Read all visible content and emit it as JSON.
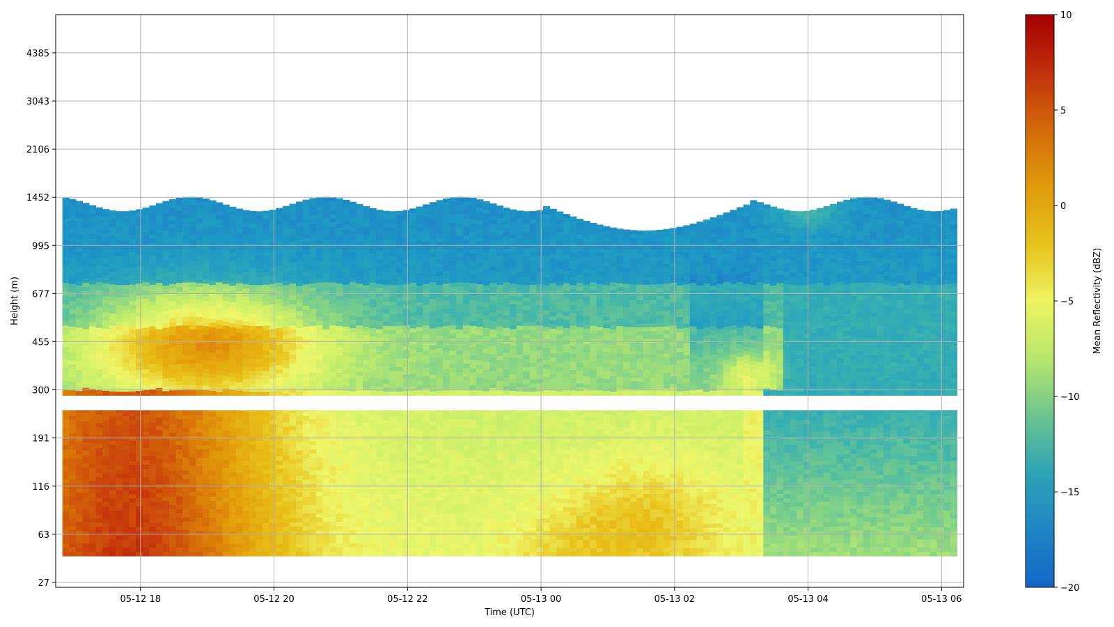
{
  "chart_data": {
    "type": "heatmap",
    "xlabel": "Time (UTC)",
    "ylabel": "Height (m)",
    "x_tick_labels": [
      "05-12 18",
      "05-12 20",
      "05-12 22",
      "05-13 00",
      "05-13 02",
      "05-13 04",
      "05-13 06"
    ],
    "x_tick_hours": [
      18,
      20,
      22,
      24,
      26,
      28,
      30
    ],
    "x_range_hours": [
      16.73,
      30.33
    ],
    "data_x_range_hours": [
      16.83,
      30.23
    ],
    "y_tick_labels": [
      "27",
      "63",
      "116",
      "191",
      "300",
      "455",
      "677",
      "995",
      "1452",
      "2106",
      "3043",
      "4385"
    ],
    "y_scale": "log-like, ticks equally spaced",
    "gap_band_m": [
      245,
      260
    ],
    "colorbar": {
      "label": "Mean Reflectivity (dBZ)",
      "min": -20,
      "max": 10,
      "ticks": [
        "10",
        "5",
        "0",
        "−5",
        "−10",
        "−15",
        "−20"
      ],
      "tick_values": [
        10,
        5,
        0,
        -5,
        -10,
        -15,
        -20
      ],
      "colormap": [
        "#1f78c8",
        "#1f9ac4",
        "#39b0b0",
        "#7ccf8a",
        "#c6ee6a",
        "#eef66a",
        "#e8c21c",
        "#e4a20c",
        "#d8730a",
        "#c83c0c",
        "#a80000"
      ]
    },
    "grid": true,
    "description_values": {
      "top_layer_dBZ": -17,
      "mid_layer_west_dBZ": -2,
      "low_layer_west_dBZ": 7,
      "low_layer_east_dBZ": -12
    }
  }
}
